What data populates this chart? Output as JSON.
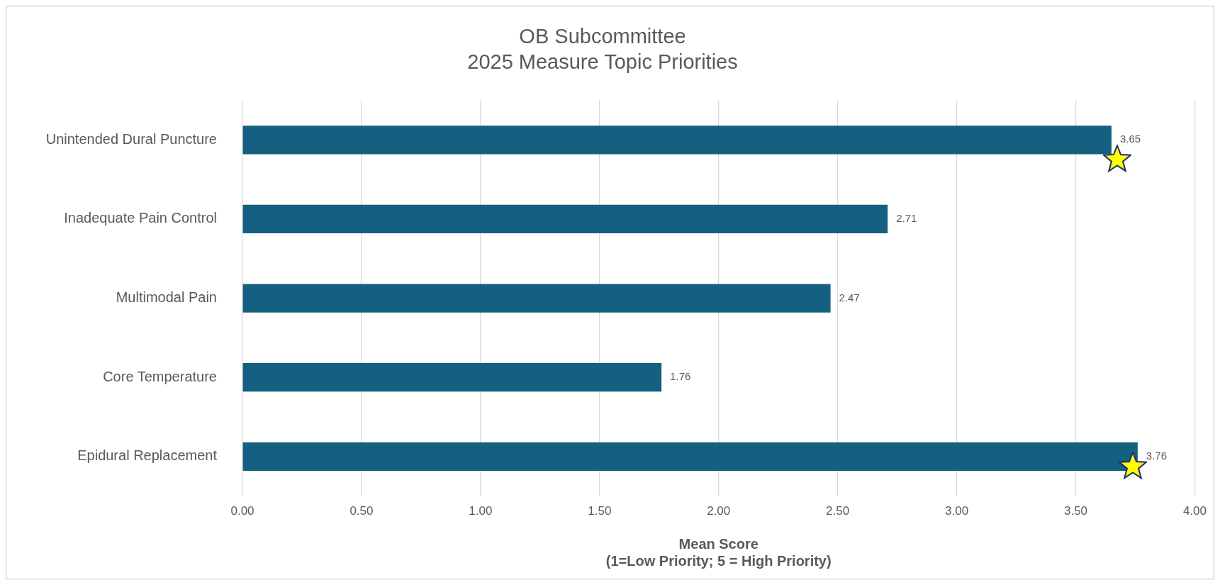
{
  "chart_data": {
    "type": "bar",
    "orientation": "horizontal",
    "title": "OB Subcommittee\n2025 Measure Topic Priorities",
    "xlabel": "Mean Score\n(1=Low Priority; 5 = High Priority)",
    "categories": [
      "Unintended Dural Puncture",
      "Inadequate Pain Control",
      "Multimodal Pain",
      "Core Temperature",
      "Epidural Replacement"
    ],
    "values": [
      3.65,
      2.71,
      2.47,
      1.76,
      3.76
    ],
    "color": "#155f80",
    "xlim": [
      0,
      4
    ],
    "xticks": [
      {
        "value": 0,
        "label": "0.00"
      },
      {
        "value": 0.5,
        "label": "0.50"
      },
      {
        "value": 1,
        "label": "1.00"
      },
      {
        "value": 1.5,
        "label": "1.50"
      },
      {
        "value": 2,
        "label": "2.00"
      },
      {
        "value": 2.5,
        "label": "2.50"
      },
      {
        "value": 3,
        "label": "3.00"
      },
      {
        "value": 3.5,
        "label": "3.50"
      },
      {
        "value": 4,
        "label": "4.00"
      }
    ],
    "grid": "x",
    "legend": false,
    "data_labels": true
  }
}
